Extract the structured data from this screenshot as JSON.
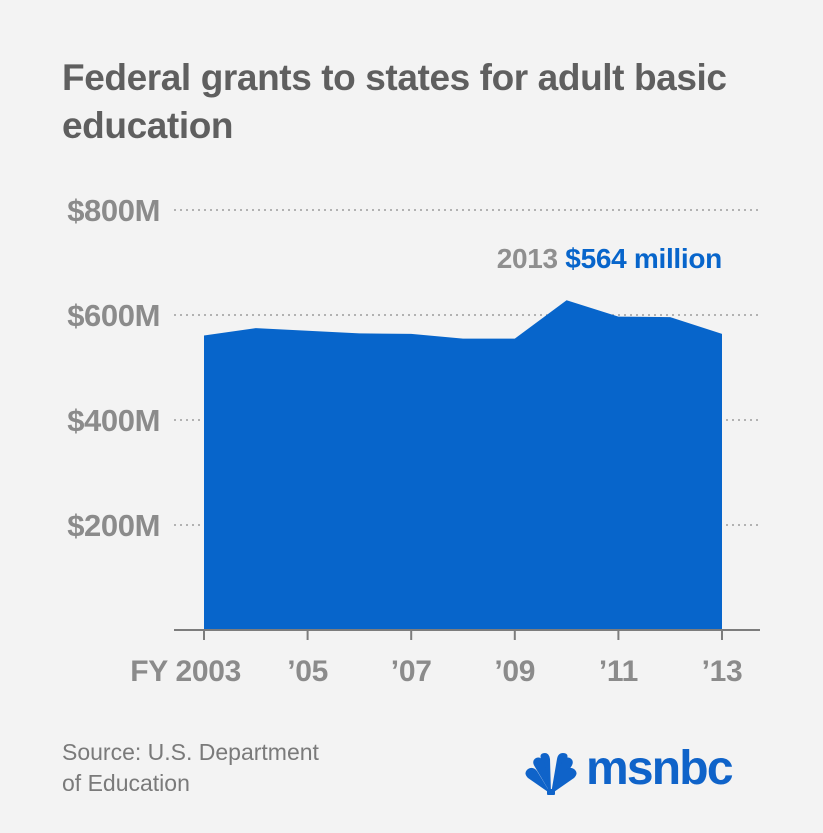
{
  "chart_data": {
    "type": "area",
    "title": "Federal grants to states for adult basic education",
    "x": [
      2003,
      2004,
      2005,
      2006,
      2007,
      2008,
      2009,
      2010,
      2011,
      2012,
      2013
    ],
    "series": [
      {
        "values": [
          561,
          575,
          570,
          565,
          564,
          555,
          555,
          628,
          597,
          596,
          564
        ],
        "color": "#0765cb"
      }
    ],
    "y_ticks": [
      {
        "value": 200,
        "label": "$200M"
      },
      {
        "value": 400,
        "label": "$400M"
      },
      {
        "value": 600,
        "label": "$600M"
      },
      {
        "value": 800,
        "label": "$800M"
      }
    ],
    "x_ticks": [
      {
        "value": 2003,
        "label": "FY 2003"
      },
      {
        "value": 2005,
        "label": "’05"
      },
      {
        "value": 2007,
        "label": "’07"
      },
      {
        "value": 2009,
        "label": "’09"
      },
      {
        "value": 2011,
        "label": "’11"
      },
      {
        "value": 2013,
        "label": "’13"
      }
    ],
    "annotation": {
      "x": 2013,
      "year_label": "2013",
      "value_label": "$564 million"
    },
    "ylim": [
      0,
      800
    ],
    "grid": true,
    "colors": {
      "background": "#f3f3f3",
      "area": "#0765cb",
      "grid": "#8a8a8a",
      "axis": "#7c7c7c",
      "axis_text": "#8b8b8b",
      "annotation_year": "#8f8f8f",
      "annotation_value": "#0765cb"
    }
  },
  "source": {
    "line1": "Source: U.S. Department",
    "line2": "of Education"
  },
  "logo": {
    "text": "msnbc",
    "icon": "peacock-icon",
    "colors": {
      "text": "#0f63c9",
      "mark": "#0f63c9"
    }
  }
}
